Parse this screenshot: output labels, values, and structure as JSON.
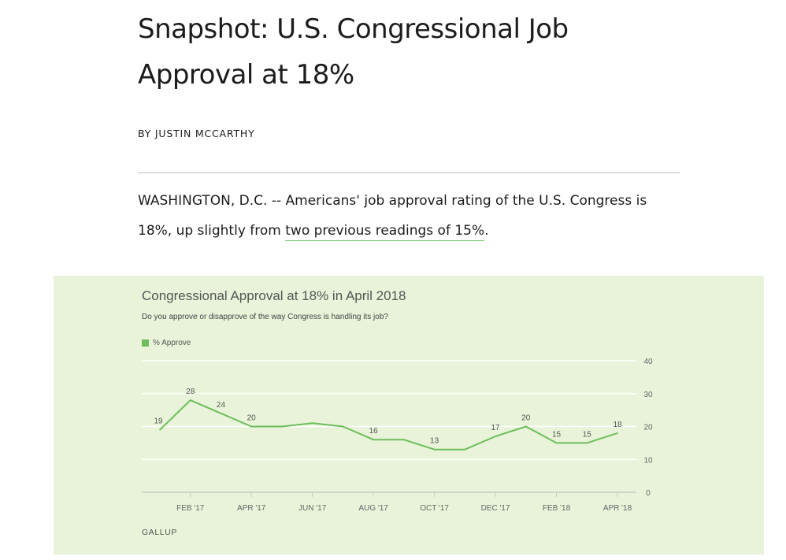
{
  "article": {
    "headline": "Snapshot: U.S. Congressional Job Approval at 18%",
    "byline": "BY JUSTIN MCCARTHY",
    "lede_text": "WASHINGTON, D.C. -- Americans' job approval rating of the U.S. Congress is 18%, up slightly from ",
    "lede_link": "two previous readings of 15%",
    "lede_end": "."
  },
  "chart": {
    "title": "Congressional Approval at 18% in April 2018",
    "subtitle": "Do you approve or disapprove of the way Congress is handling its job?",
    "legend_label": "% Approve",
    "source": "GALLUP"
  },
  "colors": {
    "line": "#6dbe5a",
    "panel_background": "#e8f3d9",
    "grid": "#ffffff",
    "axis_text": "#666666"
  },
  "chart_data": {
    "type": "line",
    "title": "Congressional Approval at 18% in April 2018",
    "subtitle": "Do you approve or disapprove of the way Congress is handling its job?",
    "series": [
      {
        "name": "% Approve",
        "points": [
          {
            "date": "2017-01",
            "value": 19
          },
          {
            "date": "2017-02",
            "value": 28
          },
          {
            "date": "2017-03",
            "value": 24
          },
          {
            "date": "2017-04",
            "value": 20
          },
          {
            "date": "2017-05",
            "value": 20
          },
          {
            "date": "2017-06",
            "value": 21
          },
          {
            "date": "2017-07",
            "value": 20
          },
          {
            "date": "2017-08",
            "value": 16
          },
          {
            "date": "2017-09",
            "value": 16
          },
          {
            "date": "2017-10",
            "value": 13
          },
          {
            "date": "2017-11",
            "value": 13
          },
          {
            "date": "2017-12",
            "value": 17
          },
          {
            "date": "2018-01",
            "value": 20
          },
          {
            "date": "2018-02",
            "value": 15
          },
          {
            "date": "2018-03",
            "value": 15
          },
          {
            "date": "2018-04",
            "value": 18
          }
        ]
      }
    ],
    "data_labels": [
      {
        "date": "2017-01",
        "text": "19"
      },
      {
        "date": "2017-02",
        "text": "28"
      },
      {
        "date": "2017-03",
        "text": "24"
      },
      {
        "date": "2017-04",
        "text": "20"
      },
      {
        "date": "2017-08",
        "text": "16"
      },
      {
        "date": "2017-10",
        "text": "13"
      },
      {
        "date": "2017-12",
        "text": "17"
      },
      {
        "date": "2018-01",
        "text": "20"
      },
      {
        "date": "2018-02",
        "text": "15"
      },
      {
        "date": "2018-03",
        "text": "15"
      },
      {
        "date": "2018-04",
        "text": "18"
      }
    ],
    "x_ticks": [
      {
        "date": "2017-02",
        "label": "FEB '17"
      },
      {
        "date": "2017-04",
        "label": "APR '17"
      },
      {
        "date": "2017-06",
        "label": "JUN '17"
      },
      {
        "date": "2017-08",
        "label": "AUG '17"
      },
      {
        "date": "2017-10",
        "label": "OCT '17"
      },
      {
        "date": "2017-12",
        "label": "DEC '17"
      },
      {
        "date": "2018-02",
        "label": "FEB '18"
      },
      {
        "date": "2018-04",
        "label": "APR '18"
      }
    ],
    "y_ticks": [
      0,
      10,
      20,
      30,
      40
    ],
    "ylim": [
      0,
      40
    ],
    "xlim": [
      "2017-01",
      "2018-04"
    ],
    "y_axis_side": "right",
    "grid": true,
    "legend_position": "top-left",
    "source": "GALLUP"
  }
}
